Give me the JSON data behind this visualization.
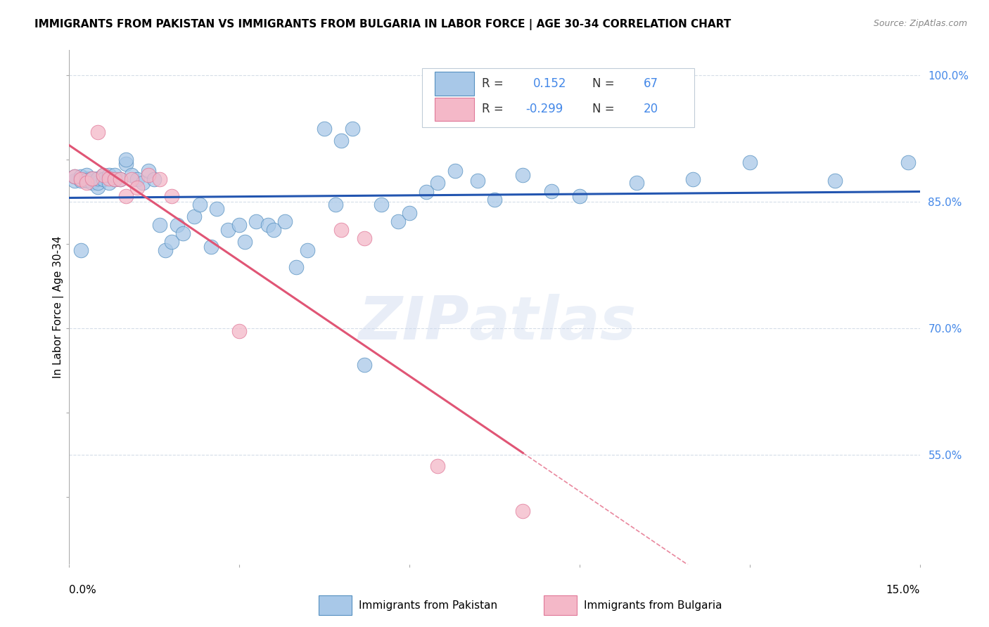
{
  "title": "IMMIGRANTS FROM PAKISTAN VS IMMIGRANTS FROM BULGARIA IN LABOR FORCE | AGE 30-34 CORRELATION CHART",
  "source": "Source: ZipAtlas.com",
  "ylabel": "In Labor Force | Age 30-34",
  "ytick_values": [
    1.0,
    0.85,
    0.7,
    0.55
  ],
  "xmin": 0.0,
  "xmax": 0.15,
  "ymin": 0.42,
  "ymax": 1.03,
  "watermark_zip": "ZIP",
  "watermark_atlas": "atlas",
  "pakistan_color": "#a8c8e8",
  "bulgaria_color": "#f4b8c8",
  "pakistan_edge": "#5590c0",
  "bulgaria_edge": "#e07898",
  "trend_pakistan_color": "#2255b0",
  "trend_bulgaria_color": "#e05575",
  "R_pakistan": 0.152,
  "N_pakistan": 67,
  "R_bulgaria": -0.299,
  "N_bulgaria": 20,
  "pakistan_x": [
    0.001,
    0.001,
    0.002,
    0.002,
    0.003,
    0.003,
    0.003,
    0.003,
    0.004,
    0.004,
    0.005,
    0.005,
    0.005,
    0.006,
    0.006,
    0.007,
    0.007,
    0.008,
    0.008,
    0.009,
    0.01,
    0.01,
    0.011,
    0.012,
    0.013,
    0.014,
    0.015,
    0.016,
    0.017,
    0.018,
    0.019,
    0.02,
    0.022,
    0.023,
    0.025,
    0.026,
    0.028,
    0.03,
    0.031,
    0.033,
    0.035,
    0.036,
    0.038,
    0.04,
    0.042,
    0.045,
    0.047,
    0.048,
    0.05,
    0.052,
    0.055,
    0.058,
    0.06,
    0.063,
    0.065,
    0.068,
    0.072,
    0.075,
    0.08,
    0.085,
    0.09,
    0.1,
    0.11,
    0.12,
    0.135,
    0.148,
    0.002
  ],
  "pakistan_y": [
    0.875,
    0.88,
    0.875,
    0.88,
    0.875,
    0.878,
    0.882,
    0.876,
    0.873,
    0.878,
    0.868,
    0.873,
    0.878,
    0.882,
    0.877,
    0.873,
    0.882,
    0.877,
    0.882,
    0.877,
    0.895,
    0.9,
    0.882,
    0.877,
    0.873,
    0.887,
    0.877,
    0.823,
    0.793,
    0.803,
    0.823,
    0.813,
    0.833,
    0.847,
    0.797,
    0.842,
    0.817,
    0.823,
    0.803,
    0.827,
    0.823,
    0.817,
    0.827,
    0.773,
    0.793,
    0.937,
    0.847,
    0.923,
    0.937,
    0.657,
    0.847,
    0.827,
    0.837,
    0.862,
    0.873,
    0.887,
    0.875,
    0.853,
    0.882,
    0.863,
    0.857,
    0.873,
    0.877,
    0.897,
    0.875,
    0.897,
    0.793
  ],
  "bulgaria_x": [
    0.001,
    0.002,
    0.003,
    0.004,
    0.005,
    0.006,
    0.007,
    0.008,
    0.009,
    0.01,
    0.011,
    0.012,
    0.014,
    0.016,
    0.018,
    0.03,
    0.048,
    0.052,
    0.065,
    0.08
  ],
  "bulgaria_y": [
    0.88,
    0.877,
    0.873,
    0.878,
    0.933,
    0.882,
    0.878,
    0.877,
    0.877,
    0.857,
    0.877,
    0.867,
    0.882,
    0.877,
    0.857,
    0.697,
    0.817,
    0.807,
    0.537,
    0.483
  ],
  "grid_color": "#d5dde8",
  "background_color": "#ffffff",
  "right_axis_color": "#4488e8",
  "legend_text_color": "#333333"
}
